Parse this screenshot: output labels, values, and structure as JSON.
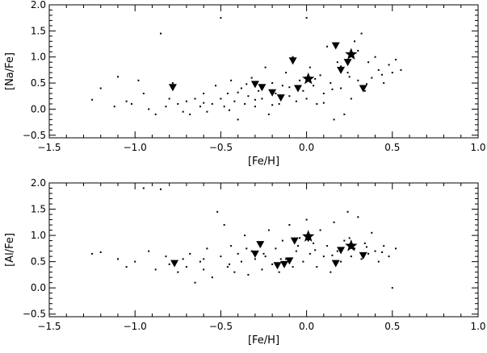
{
  "chart_data": [
    {
      "type": "scatter",
      "xlabel": "[Fe/H]",
      "ylabel": "[Na/Fe]",
      "xlim": [
        -1.5,
        1.0
      ],
      "ylim": [
        -0.55,
        2.0
      ],
      "xticks": [
        "−1.5",
        "−1.0",
        "−0.5",
        "0.0",
        "0.5",
        "1.0"
      ],
      "xtick_values": [
        -1.5,
        -1.0,
        -0.5,
        0.0,
        0.5,
        1.0
      ],
      "yticks": [
        "−0.5",
        "0.0",
        "0.5",
        "1.0",
        "1.5",
        "2.0"
      ],
      "ytick_values": [
        -0.5,
        0.0,
        0.5,
        1.0,
        1.5,
        2.0
      ],
      "grid": false,
      "series": [
        {
          "marker": "dot",
          "points": [
            [
              -1.25,
              0.18
            ],
            [
              -1.2,
              0.4
            ],
            [
              -1.12,
              0.05
            ],
            [
              -1.1,
              0.62
            ],
            [
              -1.05,
              0.15
            ],
            [
              -1.02,
              0.1
            ],
            [
              -0.98,
              0.55
            ],
            [
              -0.95,
              0.3
            ],
            [
              -0.92,
              0.0
            ],
            [
              -0.88,
              -0.1
            ],
            [
              -0.85,
              1.45
            ],
            [
              -0.82,
              0.05
            ],
            [
              -0.8,
              0.2
            ],
            [
              -0.78,
              0.5
            ],
            [
              -0.75,
              0.1
            ],
            [
              -0.72,
              -0.05
            ],
            [
              -0.7,
              0.15
            ],
            [
              -0.68,
              -0.1
            ],
            [
              -0.65,
              0.2
            ],
            [
              -0.62,
              0.05
            ],
            [
              -0.6,
              0.3
            ],
            [
              -0.58,
              -0.05
            ],
            [
              -0.55,
              0.1
            ],
            [
              -0.53,
              0.45
            ],
            [
              -0.5,
              1.75
            ],
            [
              -0.5,
              0.2
            ],
            [
              -0.48,
              0.05
            ],
            [
              -0.46,
              0.3
            ],
            [
              -0.44,
              0.55
            ],
            [
              -0.42,
              0.15
            ],
            [
              -0.4,
              -0.2
            ],
            [
              -0.38,
              0.4
            ],
            [
              -0.36,
              0.1
            ],
            [
              -0.34,
              0.25
            ],
            [
              -0.32,
              0.6
            ],
            [
              -0.3,
              0.05
            ],
            [
              -0.28,
              0.35
            ],
            [
              -0.26,
              0.2
            ],
            [
              -0.24,
              0.8
            ],
            [
              -0.22,
              -0.1
            ],
            [
              -0.2,
              0.5
            ],
            [
              -0.18,
              0.3
            ],
            [
              -0.16,
              0.1
            ],
            [
              -0.14,
              0.45
            ],
            [
              -0.12,
              0.7
            ],
            [
              -0.1,
              0.25
            ],
            [
              -0.08,
              1.0
            ],
            [
              -0.06,
              0.15
            ],
            [
              -0.04,
              0.55
            ],
            [
              -0.02,
              0.35
            ],
            [
              0.0,
              1.75
            ],
            [
              0.0,
              0.2
            ],
            [
              0.02,
              0.8
            ],
            [
              0.04,
              0.45
            ],
            [
              0.06,
              0.1
            ],
            [
              0.08,
              0.65
            ],
            [
              0.1,
              0.3
            ],
            [
              0.12,
              1.2
            ],
            [
              0.14,
              0.5
            ],
            [
              0.16,
              -0.2
            ],
            [
              0.18,
              0.9
            ],
            [
              0.2,
              0.4
            ],
            [
              0.22,
              -0.1
            ],
            [
              0.24,
              0.7
            ],
            [
              0.26,
              0.2
            ],
            [
              0.28,
              1.3
            ],
            [
              0.3,
              0.55
            ],
            [
              0.32,
              1.45
            ],
            [
              0.34,
              0.35
            ],
            [
              0.36,
              0.9
            ],
            [
              0.38,
              0.6
            ],
            [
              0.4,
              1.0
            ],
            [
              0.42,
              0.75
            ],
            [
              0.45,
              0.5
            ],
            [
              0.48,
              0.85
            ],
            [
              0.5,
              0.7
            ],
            [
              0.52,
              0.95
            ],
            [
              0.55,
              0.75
            ],
            [
              -0.6,
              0.12
            ],
            [
              -0.4,
              0.32
            ],
            [
              -0.3,
              0.18
            ],
            [
              -0.2,
              0.08
            ],
            [
              -0.1,
              0.42
            ],
            [
              0.05,
              0.58
            ],
            [
              0.15,
              0.38
            ],
            [
              0.25,
              0.62
            ],
            [
              0.35,
              0.48
            ],
            [
              0.44,
              0.66
            ],
            [
              -0.45,
              -0.02
            ],
            [
              -0.35,
              0.48
            ],
            [
              -0.15,
              0.22
            ],
            [
              0.1,
              0.12
            ],
            [
              0.2,
              0.82
            ],
            [
              0.3,
              1.12
            ]
          ]
        },
        {
          "marker": "triangle-down",
          "points": [
            [
              -0.78,
              0.42
            ],
            [
              -0.3,
              0.48
            ],
            [
              -0.26,
              0.42
            ],
            [
              -0.2,
              0.32
            ],
            [
              -0.15,
              0.22
            ],
            [
              -0.05,
              0.4
            ],
            [
              0.17,
              1.22
            ],
            [
              0.2,
              0.75
            ],
            [
              0.24,
              0.9
            ],
            [
              0.33,
              0.4
            ],
            [
              -0.08,
              0.93
            ]
          ]
        },
        {
          "marker": "star",
          "points": [
            [
              0.01,
              0.58
            ],
            [
              0.26,
              1.05
            ]
          ]
        }
      ]
    },
    {
      "type": "scatter",
      "xlabel": "[Fe/H]",
      "ylabel": "[Al/Fe]",
      "xlim": [
        -1.5,
        1.0
      ],
      "ylim": [
        -0.55,
        2.0
      ],
      "xticks": [
        "−1.5",
        "−1.0",
        "−0.5",
        "0.0",
        "0.5",
        "1.0"
      ],
      "xtick_values": [
        -1.5,
        -1.0,
        -0.5,
        0.0,
        0.5,
        1.0
      ],
      "yticks": [
        "−0.5",
        "0.0",
        "0.5",
        "1.0",
        "1.5",
        "2.0"
      ],
      "ytick_values": [
        -0.5,
        0.0,
        0.5,
        1.0,
        1.5,
        2.0
      ],
      "grid": false,
      "series": [
        {
          "marker": "dot",
          "points": [
            [
              -1.25,
              0.65
            ],
            [
              -1.2,
              0.68
            ],
            [
              -1.1,
              0.55
            ],
            [
              -1.05,
              0.4
            ],
            [
              -1.0,
              0.5
            ],
            [
              -0.95,
              1.9
            ],
            [
              -0.92,
              0.7
            ],
            [
              -0.88,
              0.35
            ],
            [
              -0.85,
              1.88
            ],
            [
              -0.82,
              0.6
            ],
            [
              -0.8,
              0.45
            ],
            [
              -0.75,
              0.3
            ],
            [
              -0.72,
              0.55
            ],
            [
              -0.7,
              0.4
            ],
            [
              -0.68,
              0.65
            ],
            [
              -0.65,
              0.1
            ],
            [
              -0.62,
              0.5
            ],
            [
              -0.6,
              0.35
            ],
            [
              -0.58,
              0.75
            ],
            [
              -0.55,
              0.2
            ],
            [
              -0.52,
              1.45
            ],
            [
              -0.5,
              0.6
            ],
            [
              -0.48,
              1.2
            ],
            [
              -0.46,
              0.4
            ],
            [
              -0.44,
              0.8
            ],
            [
              -0.42,
              0.3
            ],
            [
              -0.4,
              0.65
            ],
            [
              -0.38,
              0.5
            ],
            [
              -0.36,
              1.0
            ],
            [
              -0.34,
              0.25
            ],
            [
              -0.32,
              0.7
            ],
            [
              -0.3,
              0.55
            ],
            [
              -0.28,
              0.85
            ],
            [
              -0.26,
              0.35
            ],
            [
              -0.24,
              0.6
            ],
            [
              -0.22,
              1.1
            ],
            [
              -0.2,
              0.45
            ],
            [
              -0.18,
              0.75
            ],
            [
              -0.16,
              0.3
            ],
            [
              -0.14,
              0.9
            ],
            [
              -0.12,
              0.55
            ],
            [
              -0.1,
              1.2
            ],
            [
              -0.08,
              0.4
            ],
            [
              -0.06,
              0.7
            ],
            [
              -0.04,
              0.95
            ],
            [
              -0.02,
              0.5
            ],
            [
              0.0,
              1.3
            ],
            [
              0.02,
              0.65
            ],
            [
              0.04,
              0.85
            ],
            [
              0.06,
              0.4
            ],
            [
              0.08,
              1.1
            ],
            [
              0.1,
              0.6
            ],
            [
              0.12,
              0.8
            ],
            [
              0.14,
              0.3
            ],
            [
              0.16,
              1.25
            ],
            [
              0.18,
              0.7
            ],
            [
              0.2,
              0.5
            ],
            [
              0.22,
              0.9
            ],
            [
              0.24,
              1.45
            ],
            [
              0.26,
              0.6
            ],
            [
              0.28,
              0.75
            ],
            [
              0.3,
              1.35
            ],
            [
              0.32,
              0.55
            ],
            [
              0.34,
              0.85
            ],
            [
              0.36,
              0.65
            ],
            [
              0.38,
              1.05
            ],
            [
              0.4,
              0.7
            ],
            [
              0.42,
              0.5
            ],
            [
              0.45,
              0.8
            ],
            [
              0.48,
              0.6
            ],
            [
              0.5,
              0.0
            ],
            [
              0.52,
              0.75
            ],
            [
              -0.6,
              0.55
            ],
            [
              -0.45,
              0.45
            ],
            [
              -0.35,
              0.75
            ],
            [
              -0.25,
              0.65
            ],
            [
              -0.15,
              0.55
            ],
            [
              -0.05,
              0.8
            ],
            [
              0.05,
              0.72
            ],
            [
              0.15,
              0.62
            ],
            [
              0.25,
              0.95
            ],
            [
              0.35,
              0.78
            ],
            [
              0.44,
              0.68
            ]
          ]
        },
        {
          "marker": "triangle-down",
          "points": [
            [
              -0.77,
              0.47
            ],
            [
              -0.3,
              0.65
            ],
            [
              -0.27,
              0.83
            ],
            [
              -0.17,
              0.43
            ],
            [
              -0.13,
              0.45
            ],
            [
              -0.07,
              0.9
            ],
            [
              0.01,
              0.95
            ],
            [
              0.17,
              0.47
            ],
            [
              0.2,
              0.72
            ],
            [
              0.33,
              0.62
            ],
            [
              -0.1,
              0.52
            ]
          ]
        },
        {
          "marker": "star",
          "points": [
            [
              0.01,
              0.98
            ],
            [
              0.26,
              0.8
            ]
          ]
        }
      ]
    }
  ]
}
